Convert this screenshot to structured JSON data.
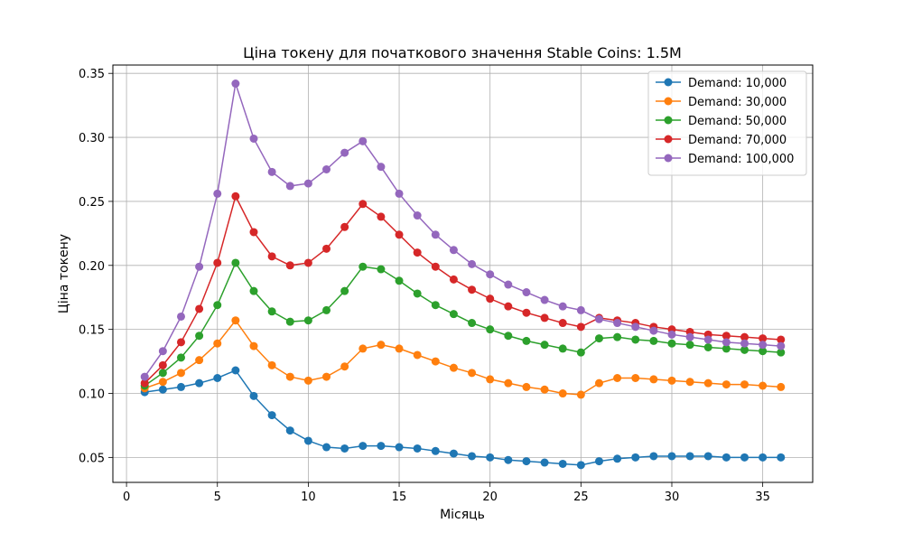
{
  "chart_data": {
    "type": "line",
    "title": "Ціна токену для початкового значення Stable Coins: 1.5M",
    "xlabel": "Місяць",
    "ylabel": "Ціна токену",
    "xlim": [
      -0.75,
      37.75
    ],
    "ylim": [
      0.0305,
      0.3565
    ],
    "x_ticks": [
      0,
      5,
      10,
      15,
      20,
      25,
      30,
      35
    ],
    "y_ticks": [
      0.05,
      0.1,
      0.15,
      0.2,
      0.25,
      0.3,
      0.35
    ],
    "y_tick_labels": [
      "0.05",
      "0.10",
      "0.15",
      "0.20",
      "0.25",
      "0.30",
      "0.35"
    ],
    "grid": true,
    "legend_position": "top-right",
    "x": [
      1,
      2,
      3,
      4,
      5,
      6,
      7,
      8,
      9,
      10,
      11,
      12,
      13,
      14,
      15,
      16,
      17,
      18,
      19,
      20,
      21,
      22,
      23,
      24,
      25,
      26,
      27,
      28,
      29,
      30,
      31,
      32,
      33,
      34,
      35,
      36
    ],
    "series": [
      {
        "name": "Demand: 10,000",
        "color": "#1f77b4",
        "values": [
          0.101,
          0.103,
          0.105,
          0.108,
          0.112,
          0.118,
          0.098,
          0.083,
          0.071,
          0.063,
          0.058,
          0.057,
          0.059,
          0.059,
          0.058,
          0.057,
          0.055,
          0.053,
          0.051,
          0.05,
          0.048,
          0.047,
          0.046,
          0.045,
          0.044,
          0.047,
          0.049,
          0.05,
          0.051,
          0.051,
          0.051,
          0.051,
          0.05,
          0.05,
          0.05,
          0.05
        ]
      },
      {
        "name": "Demand: 30,000",
        "color": "#ff7f0e",
        "values": [
          0.104,
          0.109,
          0.116,
          0.126,
          0.139,
          0.157,
          0.137,
          0.122,
          0.113,
          0.11,
          0.113,
          0.121,
          0.135,
          0.138,
          0.135,
          0.13,
          0.125,
          0.12,
          0.116,
          0.111,
          0.108,
          0.105,
          0.103,
          0.1,
          0.099,
          0.108,
          0.112,
          0.112,
          0.111,
          0.11,
          0.109,
          0.108,
          0.107,
          0.107,
          0.106,
          0.105
        ]
      },
      {
        "name": "Demand: 50,000",
        "color": "#2ca02c",
        "values": [
          0.106,
          0.116,
          0.128,
          0.145,
          0.169,
          0.202,
          0.18,
          0.164,
          0.156,
          0.157,
          0.165,
          0.18,
          0.199,
          0.197,
          0.188,
          0.178,
          0.169,
          0.162,
          0.155,
          0.15,
          0.145,
          0.141,
          0.138,
          0.135,
          0.132,
          0.143,
          0.144,
          0.142,
          0.141,
          0.139,
          0.138,
          0.136,
          0.135,
          0.134,
          0.133,
          0.132
        ]
      },
      {
        "name": "Demand: 70,000",
        "color": "#d62728",
        "values": [
          0.108,
          0.122,
          0.14,
          0.166,
          0.202,
          0.254,
          0.226,
          0.207,
          0.2,
          0.202,
          0.213,
          0.23,
          0.248,
          0.238,
          0.224,
          0.21,
          0.199,
          0.189,
          0.181,
          0.174,
          0.168,
          0.163,
          0.159,
          0.155,
          0.152,
          0.159,
          0.157,
          0.155,
          0.152,
          0.15,
          0.148,
          0.146,
          0.145,
          0.144,
          0.143,
          0.142
        ]
      },
      {
        "name": "Demand: 100,000",
        "color": "#9467bd",
        "values": [
          0.113,
          0.133,
          0.16,
          0.199,
          0.256,
          0.342,
          0.299,
          0.273,
          0.262,
          0.264,
          0.275,
          0.288,
          0.297,
          0.277,
          0.256,
          0.239,
          0.224,
          0.212,
          0.201,
          0.193,
          0.185,
          0.179,
          0.173,
          0.168,
          0.165,
          0.158,
          0.155,
          0.152,
          0.149,
          0.146,
          0.144,
          0.142,
          0.14,
          0.139,
          0.138,
          0.137
        ]
      }
    ]
  }
}
